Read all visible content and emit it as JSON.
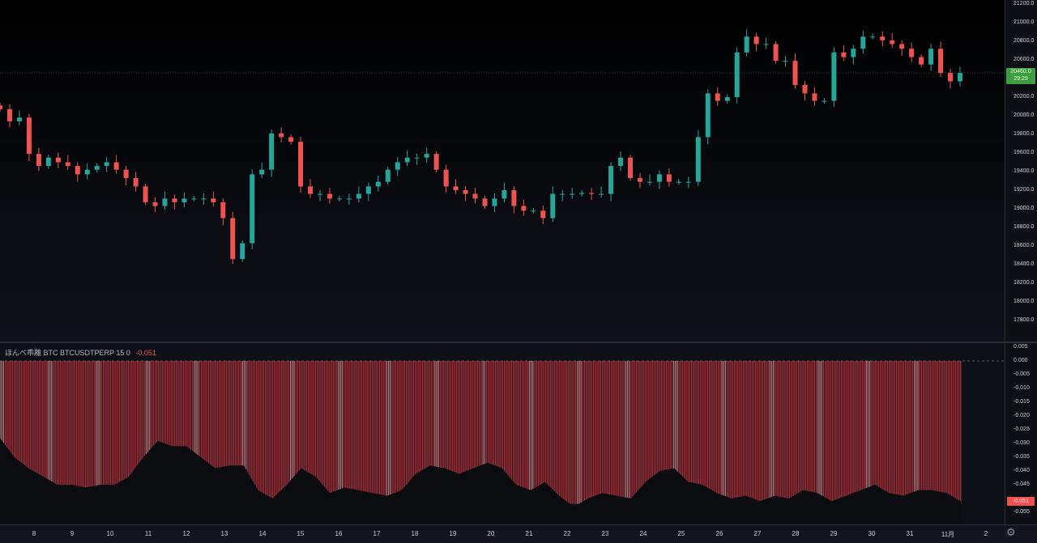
{
  "colors": {
    "up": "#26a69a",
    "down": "#ef5350",
    "histogram": "#b2303a",
    "price_label": "#3d9e3f",
    "indicator_label": "#f05050"
  },
  "price_pane": {
    "current_price": "20460.0",
    "countdown": "29:29",
    "axis_ticks": [
      "21200.0",
      "21000.0",
      "20800.0",
      "20600.0",
      "20200.0",
      "20000.0",
      "19800.0",
      "19600.0",
      "19400.0",
      "19200.0",
      "19000.0",
      "18800.0",
      "18600.0",
      "18400.0",
      "18200.0",
      "18000.0",
      "17800.0"
    ]
  },
  "indicator": {
    "name": "ほんべ乖離",
    "params": "BTC BTCUSDTPERP 15 0",
    "value": "-0.051",
    "axis_ticks": [
      "0.005",
      "0.000",
      "-0.005",
      "-0.010",
      "-0.015",
      "-0.020",
      "-0.025",
      "-0.030",
      "-0.035",
      "-0.040",
      "-0.045",
      "-0.055"
    ]
  },
  "time_axis": {
    "labels": [
      "8",
      "9",
      "10",
      "11",
      "12",
      "13",
      "14",
      "15",
      "16",
      "17",
      "18",
      "19",
      "20",
      "21",
      "22",
      "23",
      "24",
      "25",
      "26",
      "27",
      "28",
      "29",
      "30",
      "31",
      "11月",
      "2"
    ]
  },
  "settings_icon": "gear-icon",
  "chart_data": [
    {
      "type": "candlestick",
      "ylim": [
        17700,
        21250
      ],
      "grid": false,
      "closes": [
        20070,
        19940,
        19980,
        19590,
        19460,
        19550,
        19500,
        19460,
        19370,
        19420,
        19460,
        19500,
        19420,
        19330,
        19240,
        19070,
        19030,
        19110,
        19070,
        19110,
        19110,
        19110,
        19070,
        18900,
        18460,
        18630,
        19370,
        19420,
        19810,
        19770,
        19720,
        19240,
        19160,
        19160,
        19110,
        19110,
        19110,
        19160,
        19240,
        19290,
        19420,
        19500,
        19550,
        19550,
        19590,
        19420,
        19240,
        19200,
        19160,
        19110,
        19030,
        19110,
        19200,
        19030,
        18980,
        18980,
        18900,
        19160,
        19160,
        19160,
        19170,
        19160,
        19160,
        19460,
        19550,
        19330,
        19290,
        19290,
        19370,
        19290,
        19290,
        19290,
        19770,
        20240,
        20160,
        20200,
        20680,
        20850,
        20770,
        20770,
        20590,
        20590,
        20330,
        20240,
        20160,
        20160,
        20680,
        20630,
        20720,
        20850,
        20850,
        20810,
        20770,
        20720,
        20630,
        20550,
        20720,
        20460,
        20370,
        20460
      ]
    },
    {
      "type": "area",
      "ylim": [
        -0.058,
        0.006
      ],
      "histogram_level": -0.052,
      "values": [
        -0.028,
        -0.035,
        -0.039,
        -0.042,
        -0.045,
        -0.045,
        -0.046,
        -0.045,
        -0.045,
        -0.042,
        -0.035,
        -0.029,
        -0.031,
        -0.031,
        -0.035,
        -0.039,
        -0.038,
        -0.038,
        -0.047,
        -0.05,
        -0.045,
        -0.039,
        -0.042,
        -0.048,
        -0.046,
        -0.047,
        -0.048,
        -0.049,
        -0.047,
        -0.041,
        -0.038,
        -0.039,
        -0.041,
        -0.039,
        -0.037,
        -0.039,
        -0.045,
        -0.047,
        -0.044,
        -0.049,
        -0.053,
        -0.05,
        -0.048,
        -0.049,
        -0.05,
        -0.044,
        -0.04,
        -0.039,
        -0.044,
        -0.045,
        -0.048,
        -0.05,
        -0.049,
        -0.051,
        -0.049,
        -0.05,
        -0.047,
        -0.048,
        -0.051,
        -0.049,
        -0.047,
        -0.045,
        -0.048,
        -0.049,
        -0.047,
        -0.047,
        -0.048,
        -0.051
      ]
    }
  ]
}
